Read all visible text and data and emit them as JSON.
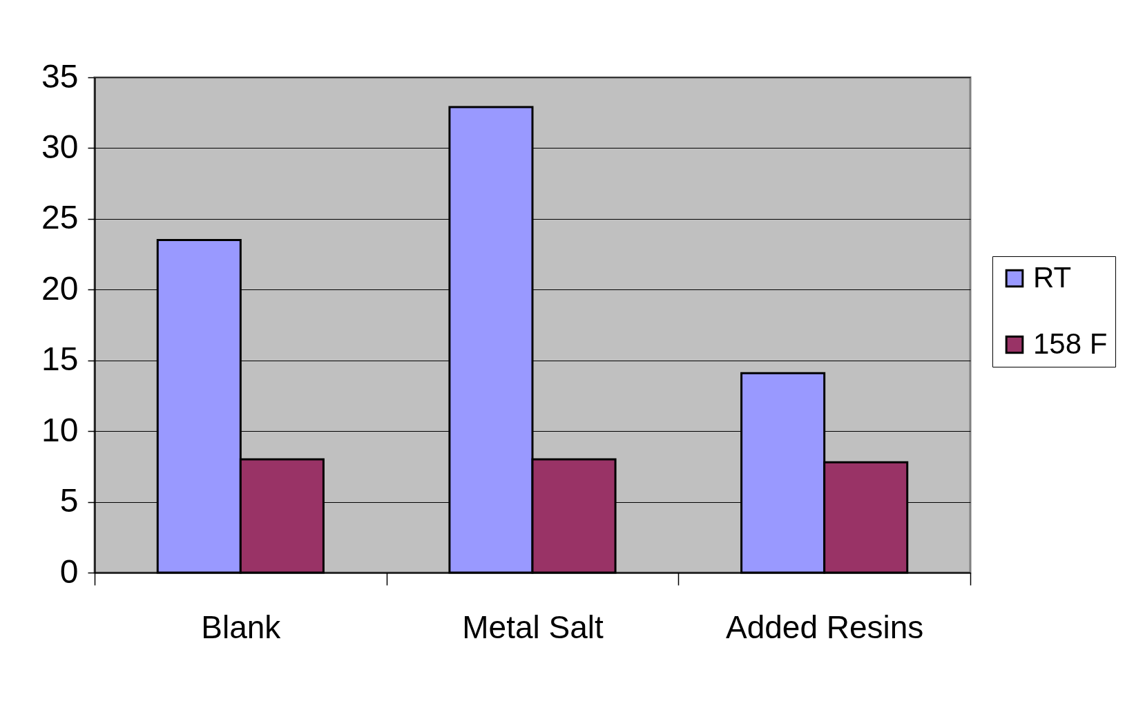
{
  "chart_data": {
    "type": "bar",
    "categories": [
      "Blank",
      "Metal Salt",
      "Added Resins"
    ],
    "series": [
      {
        "name": "RT",
        "color": "#9999ff",
        "values": [
          23.5,
          32.9,
          14.1
        ]
      },
      {
        "name": "158 F",
        "color": "#993366",
        "values": [
          8.0,
          8.0,
          7.8
        ]
      }
    ],
    "ylim": [
      0,
      35
    ],
    "yticks": [
      0,
      5,
      10,
      15,
      20,
      25,
      30,
      35
    ],
    "grid": "y",
    "legend": "right"
  }
}
